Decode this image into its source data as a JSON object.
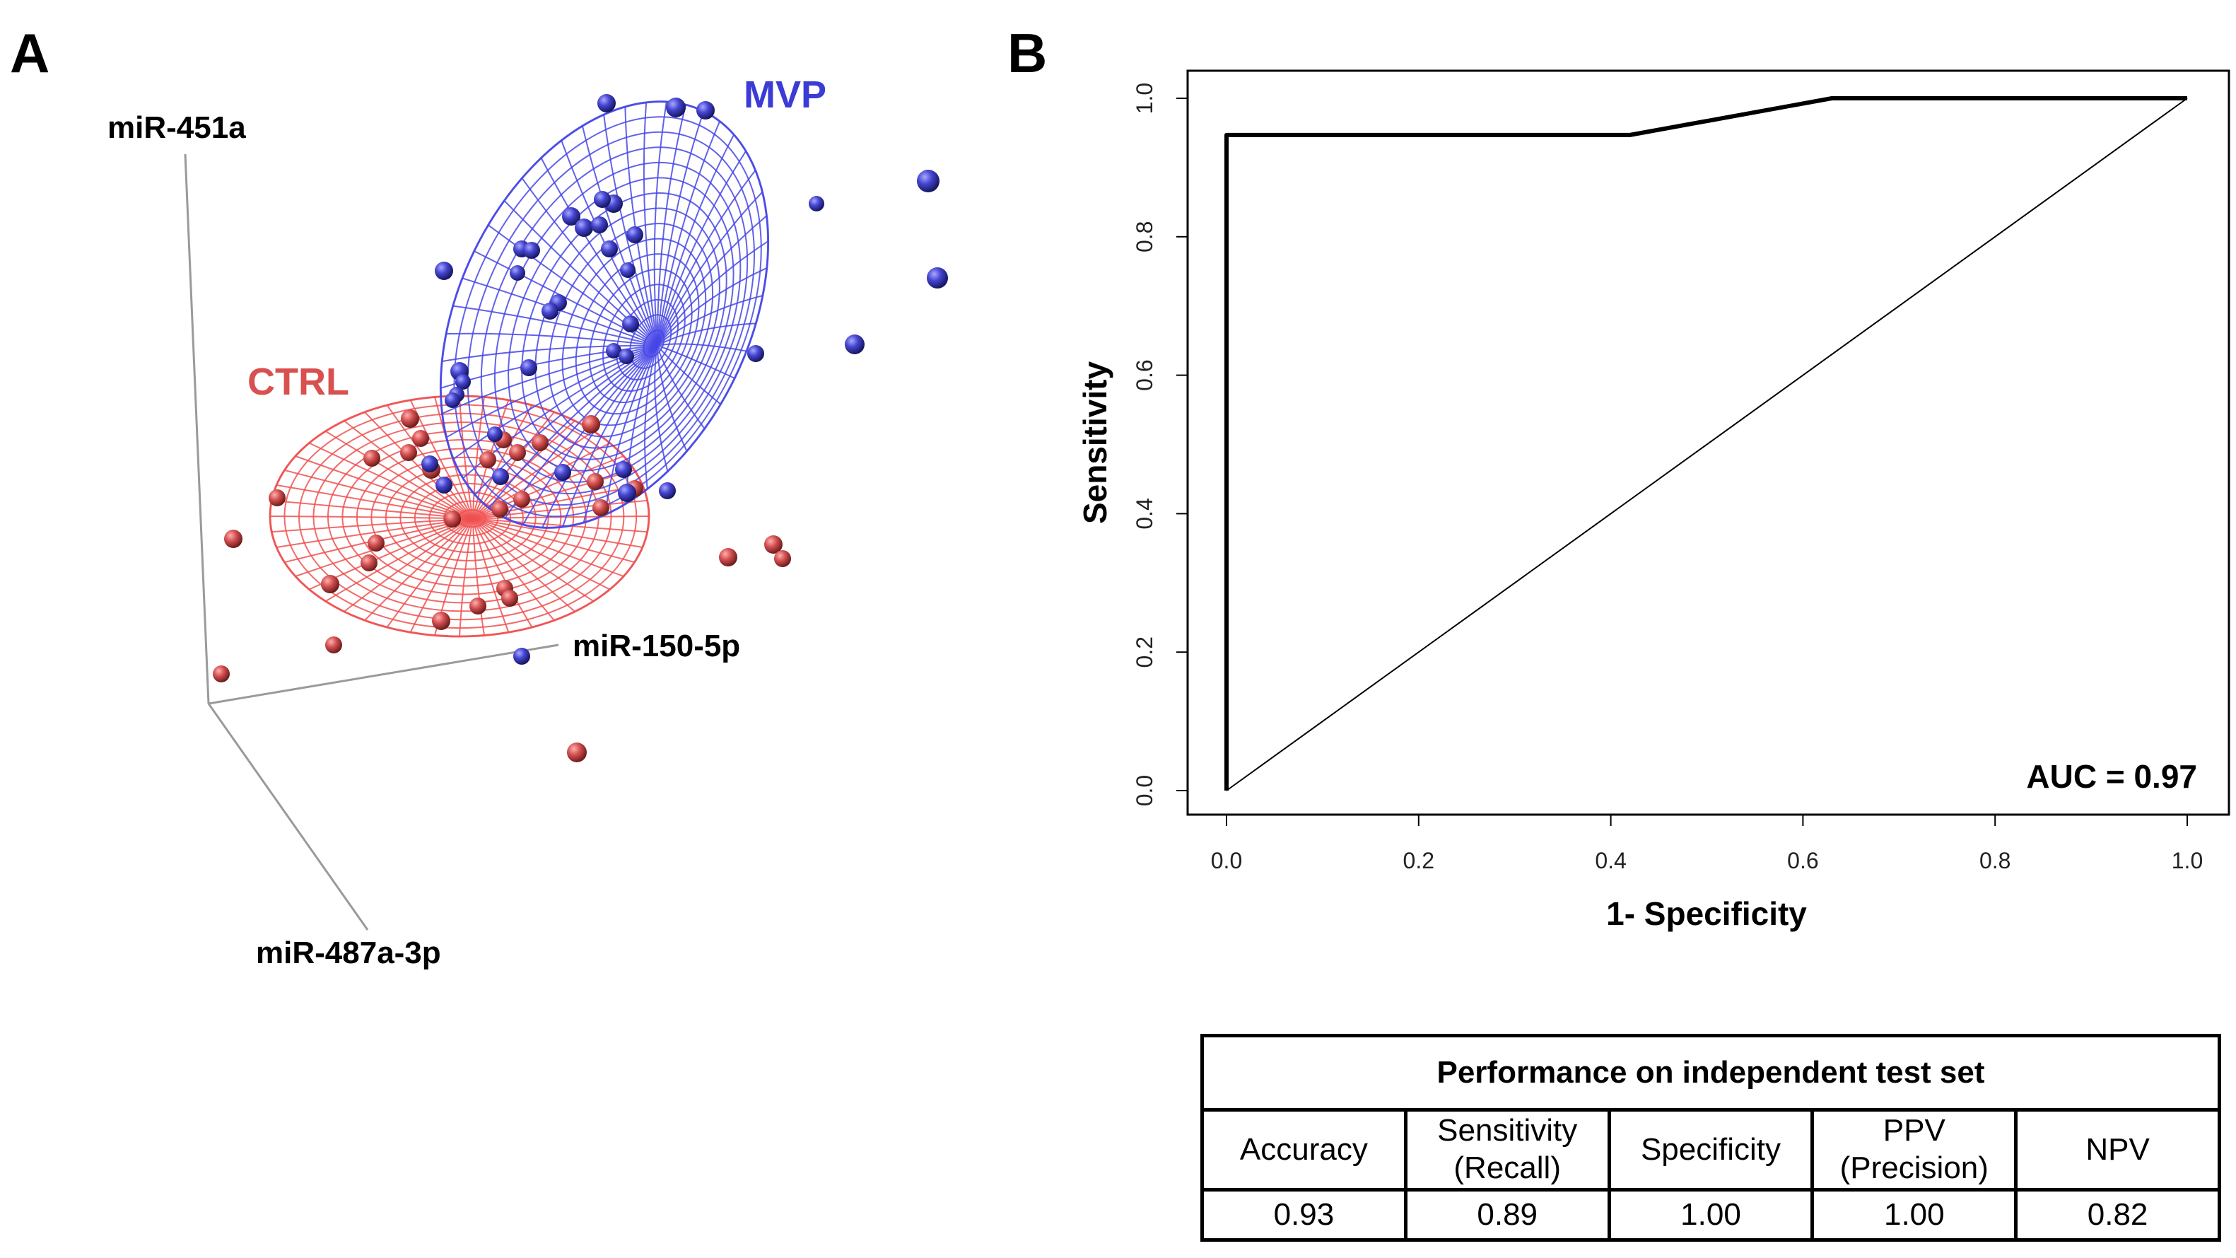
{
  "panel_labels": {
    "a": "A",
    "b": "B"
  },
  "chart_data": [
    {
      "type": "scatter",
      "subtype": "3d-scatter-with-ellipsoids",
      "title": "",
      "axes": {
        "vertical": "miR-451a",
        "right": "miR-150-5p",
        "depth": "miR-487a-3p"
      },
      "groups": [
        {
          "name": "MVP",
          "color": "#3b3bd6"
        },
        {
          "name": "CTRL",
          "color": "#e05050"
        }
      ]
    },
    {
      "type": "line",
      "title": "",
      "xlabel": "1- Specificity",
      "ylabel": "Sensitivity",
      "xlim": [
        0,
        1
      ],
      "ylim": [
        0,
        1
      ],
      "xticks": [
        "0.0",
        "0.2",
        "0.4",
        "0.6",
        "0.8",
        "1.0"
      ],
      "yticks": [
        "0.0",
        "0.2",
        "0.4",
        "0.6",
        "0.8",
        "1.0"
      ],
      "series": [
        {
          "name": "ROC",
          "points": [
            [
              0,
              0
            ],
            [
              0,
              0.947
            ],
            [
              0.06,
              0.947
            ],
            [
              0.42,
              0.947
            ],
            [
              0.63,
              1.0
            ],
            [
              1.0,
              1.0
            ]
          ]
        },
        {
          "name": "reference",
          "points": [
            [
              0,
              0
            ],
            [
              1,
              1
            ]
          ]
        }
      ],
      "annotation": "AUC = 0.97"
    }
  ],
  "performance_table": {
    "title": "Performance on independent test set",
    "headers": [
      {
        "line1": "Accuracy",
        "line2": ""
      },
      {
        "line1": "Sensitivity",
        "line2": "(Recall)"
      },
      {
        "line1": "Specificity",
        "line2": ""
      },
      {
        "line1": "PPV",
        "line2": "(Precision)"
      },
      {
        "line1": "NPV",
        "line2": ""
      }
    ],
    "values": [
      "0.93",
      "0.89",
      "1.00",
      "1.00",
      "0.82"
    ]
  }
}
